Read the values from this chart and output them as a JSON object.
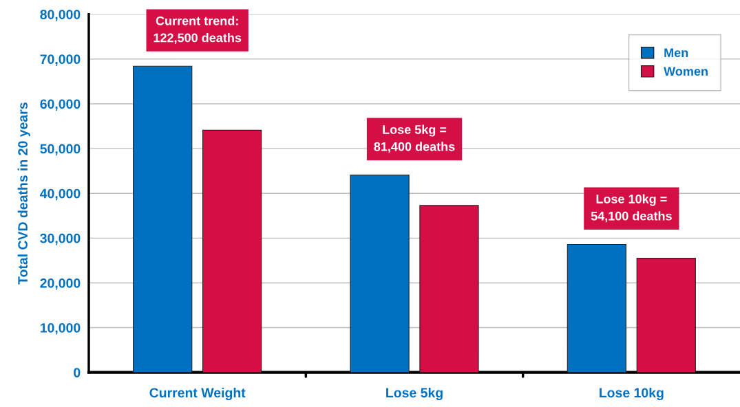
{
  "chart_data": {
    "type": "bar",
    "ylabel": "Total CVD deaths in 20 years",
    "categories": [
      "Current Weight",
      "Lose 5kg",
      "Lose 10kg"
    ],
    "series": [
      {
        "name": "Men",
        "color": "#0070c0",
        "values": [
          68400,
          44100,
          28600
        ]
      },
      {
        "name": "Women",
        "color": "#d40f45",
        "values": [
          54100,
          37300,
          25500
        ]
      }
    ],
    "ylim": [
      0,
      80000
    ],
    "yticks": [
      0,
      {
        "value": 10000,
        "label": "10,000"
      },
      {
        "value": 20000,
        "label": "20,000"
      },
      {
        "value": 30000,
        "label": "30,000"
      },
      {
        "value": 40000,
        "label": "40,000"
      },
      {
        "value": 50000,
        "label": "50,000"
      },
      {
        "value": 60000,
        "label": "60,000"
      },
      {
        "value": 70000,
        "label": "70,000"
      },
      {
        "value": 80000,
        "label": "80,000"
      }
    ],
    "annotations": [
      "Current trend:\n122,500 deaths",
      "Lose 5kg =\n81,400 deaths",
      "Lose 10kg =\n54,100 deaths"
    ],
    "grid": "y",
    "legend": "top right"
  }
}
